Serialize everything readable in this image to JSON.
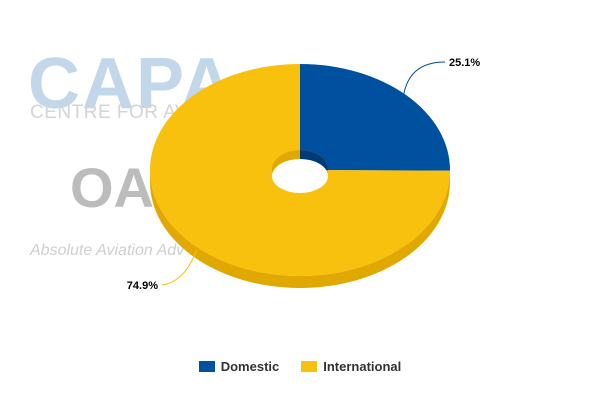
{
  "watermark": {
    "brand": "CAPA",
    "tagline": "CENTRE FOR AVI",
    "partner": "OAG",
    "slogan": "Absolute Aviation Adv"
  },
  "colors": {
    "domestic": "#0050a0",
    "domestic_side": "#003a78",
    "international": "#f8c10e",
    "international_side": "#e0a800"
  },
  "chart_data": {
    "type": "pie",
    "style": "3d-donut",
    "legend_position": "bottom",
    "slices": [
      {
        "name": "Domestic",
        "value": 25.1,
        "label": "25.1%"
      },
      {
        "name": "International",
        "value": 74.9,
        "label": "74.9%"
      }
    ]
  }
}
